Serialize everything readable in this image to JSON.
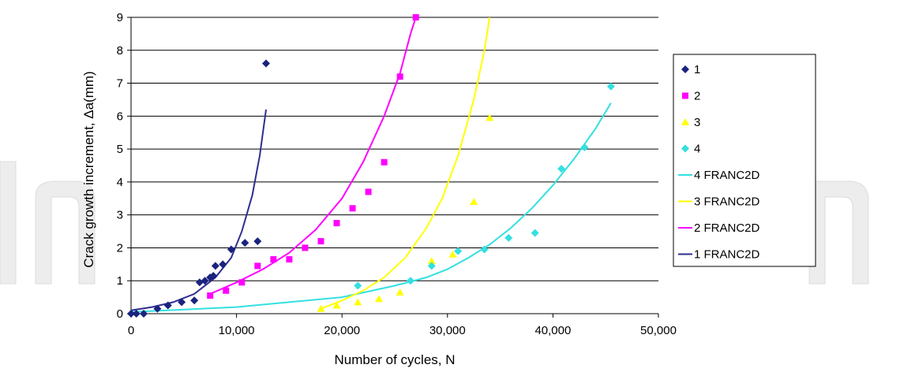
{
  "chart_data": {
    "type": "scatter",
    "xlabel": "Number of cycles, N",
    "ylabel": "Crack growth increment, Δa(mm)",
    "xlim": [
      0,
      50000
    ],
    "ylim": [
      0,
      9
    ],
    "x_ticks": [
      0,
      10000,
      20000,
      30000,
      40000,
      50000
    ],
    "x_tick_labels": [
      "0",
      "10,000",
      "20,000",
      "30,000",
      "40,000",
      "50,000"
    ],
    "y_ticks": [
      0,
      1,
      2,
      3,
      4,
      5,
      6,
      7,
      8,
      9
    ],
    "y_tick_labels": [
      "0",
      "1",
      "2",
      "3",
      "4",
      "5",
      "6",
      "7",
      "8",
      "9"
    ],
    "grid": "horizontal",
    "legend_position": "right",
    "series": [
      {
        "name": "1",
        "kind": "points",
        "marker": "diamond",
        "color": "#1a237e",
        "x": [
          0,
          500,
          1200,
          2500,
          3500,
          4800,
          6000,
          6500,
          7000,
          7500,
          7800,
          8000,
          8700,
          9500,
          10800,
          12000,
          12800
        ],
        "y": [
          0,
          0,
          0,
          0.15,
          0.25,
          0.35,
          0.4,
          0.95,
          1.0,
          1.1,
          1.15,
          1.45,
          1.5,
          1.95,
          2.15,
          2.2,
          7.6
        ]
      },
      {
        "name": "2",
        "kind": "points",
        "marker": "square",
        "color": "#ff00ff",
        "x": [
          7500,
          9000,
          10500,
          12000,
          13500,
          15000,
          16500,
          18000,
          19500,
          21000,
          22500,
          24000,
          25500,
          27000
        ],
        "y": [
          0.55,
          0.7,
          0.95,
          1.45,
          1.65,
          1.65,
          2.0,
          2.2,
          2.75,
          3.2,
          3.7,
          4.6,
          7.2,
          9.0
        ]
      },
      {
        "name": "3",
        "kind": "points",
        "marker": "triangle",
        "color": "#ffff00",
        "x": [
          18000,
          19500,
          21500,
          23500,
          25500,
          28500,
          30500,
          32500,
          34000
        ],
        "y": [
          0.15,
          0.25,
          0.35,
          0.45,
          0.65,
          1.6,
          1.8,
          3.4,
          5.95
        ]
      },
      {
        "name": "4",
        "kind": "points",
        "marker": "diamond",
        "color": "#33e0e0",
        "x": [
          21500,
          26500,
          28500,
          31000,
          33500,
          35800,
          38300,
          40800,
          43000,
          45500
        ],
        "y": [
          0.85,
          1.0,
          1.45,
          1.9,
          1.95,
          2.3,
          2.45,
          4.4,
          5.05,
          6.9
        ]
      },
      {
        "name": "4 FRANC2D",
        "kind": "line",
        "color": "#33e0e0",
        "x": [
          0,
          10000,
          20000,
          25000,
          28000,
          30000,
          32000,
          34000,
          36000,
          38000,
          40000,
          42000,
          44000,
          45500
        ],
        "y": [
          0.05,
          0.2,
          0.5,
          0.85,
          1.1,
          1.35,
          1.7,
          2.1,
          2.6,
          3.2,
          3.9,
          4.7,
          5.6,
          6.4
        ]
      },
      {
        "name": "3 FRANC2D",
        "kind": "line",
        "color": "#ffff00",
        "x": [
          18000,
          20000,
          22000,
          24000,
          26000,
          28000,
          29500,
          31000,
          32500,
          33500,
          34000
        ],
        "y": [
          0.15,
          0.4,
          0.7,
          1.1,
          1.7,
          2.6,
          3.5,
          4.8,
          6.5,
          8.0,
          9.0
        ]
      },
      {
        "name": "2 FRANC2D",
        "kind": "line",
        "color": "#ff00ff",
        "x": [
          7500,
          10000,
          12500,
          15000,
          17500,
          20000,
          22000,
          24000,
          25500,
          26500,
          27000
        ],
        "y": [
          0.6,
          0.95,
          1.35,
          1.85,
          2.55,
          3.5,
          4.6,
          6.0,
          7.3,
          8.5,
          9.0
        ]
      },
      {
        "name": "1 FRANC2D",
        "kind": "line",
        "color": "#2e2e8f",
        "x": [
          0,
          2000,
          4000,
          6000,
          8000,
          9500,
          10500,
          11500,
          12200,
          12800
        ],
        "y": [
          0.1,
          0.2,
          0.35,
          0.6,
          1.1,
          1.7,
          2.5,
          3.6,
          4.8,
          6.2
        ]
      }
    ]
  }
}
